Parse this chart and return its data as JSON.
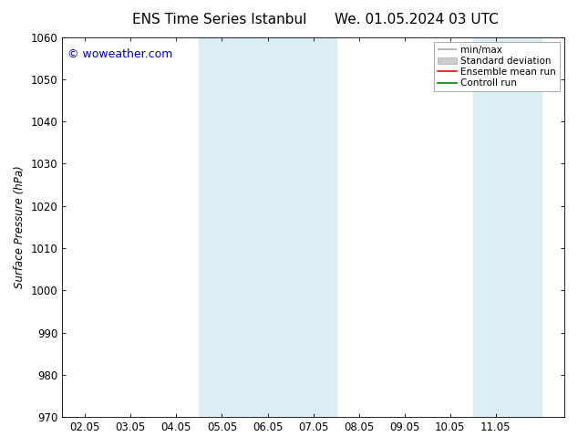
{
  "title_left": "ENS Time Series Istanbul",
  "title_right": "We. 01.05.2024 03 UTC",
  "ylabel": "Surface Pressure (hPa)",
  "watermark": "© woweather.com",
  "ylim": [
    970,
    1060
  ],
  "yticks": [
    970,
    980,
    990,
    1000,
    1010,
    1020,
    1030,
    1040,
    1050,
    1060
  ],
  "x_labels": [
    "02.05",
    "03.05",
    "04.05",
    "05.05",
    "06.05",
    "07.05",
    "08.05",
    "09.05",
    "10.05",
    "11.05"
  ],
  "x_positions": [
    0,
    1,
    2,
    3,
    4,
    5,
    6,
    7,
    8,
    9
  ],
  "xlim": [
    -0.5,
    10.5
  ],
  "shaded_regions": [
    {
      "xmin": 2.5,
      "xmax": 3.5,
      "color": "#daeef3"
    },
    {
      "xmin": 3.5,
      "xmax": 5.5,
      "color": "#daeef3"
    },
    {
      "xmin": 8.5,
      "xmax": 10.0,
      "color": "#daeef3"
    }
  ],
  "legend_items": [
    {
      "label": "min/max",
      "color": "#aaaaaa",
      "style": "line_with_caps"
    },
    {
      "label": "Standard deviation",
      "color": "#cccccc",
      "style": "band"
    },
    {
      "label": "Ensemble mean run",
      "color": "#ff0000",
      "style": "line"
    },
    {
      "label": "Controll run",
      "color": "#008000",
      "style": "line"
    }
  ],
  "background_color": "#ffffff",
  "plot_bg_color": "#ffffff",
  "border_color": "#000000",
  "title_fontsize": 11,
  "tick_fontsize": 8.5,
  "watermark_color": "#0000cc",
  "watermark_fontsize": 9
}
